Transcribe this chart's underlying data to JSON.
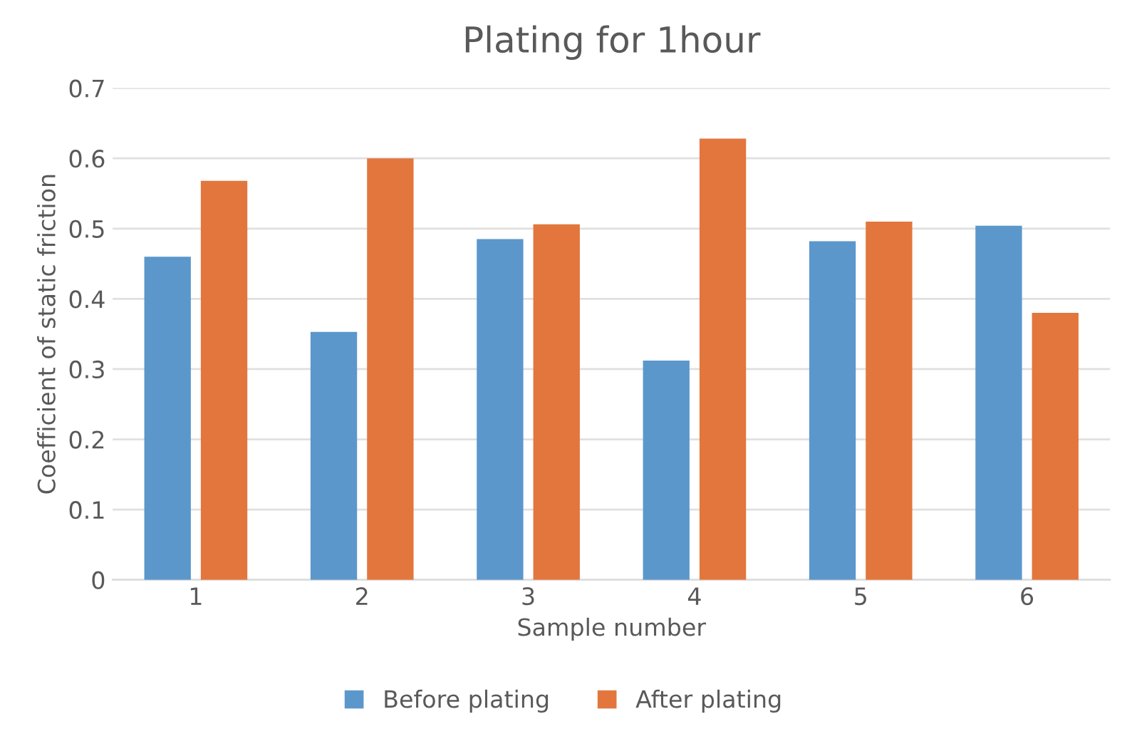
{
  "chart_data": {
    "type": "bar",
    "title": "Plating for 1hour",
    "xlabel": "Sample number",
    "ylabel": "Coefficient of static friction",
    "categories": [
      "1",
      "2",
      "3",
      "4",
      "5",
      "6"
    ],
    "series": [
      {
        "name": "Before plating",
        "color": "#5b97cb",
        "values": [
          0.46,
          0.353,
          0.485,
          0.312,
          0.482,
          0.504
        ]
      },
      {
        "name": "After plating",
        "color": "#e2763d",
        "values": [
          0.568,
          0.6,
          0.506,
          0.628,
          0.51,
          0.38
        ]
      }
    ],
    "ylim": [
      0,
      0.7
    ],
    "yticks": [
      {
        "value": 0,
        "label": "0"
      },
      0.1,
      0.2,
      0.3,
      0.4,
      0.5,
      0.6,
      0.7
    ],
    "grid": "y",
    "legend": "bottom"
  }
}
